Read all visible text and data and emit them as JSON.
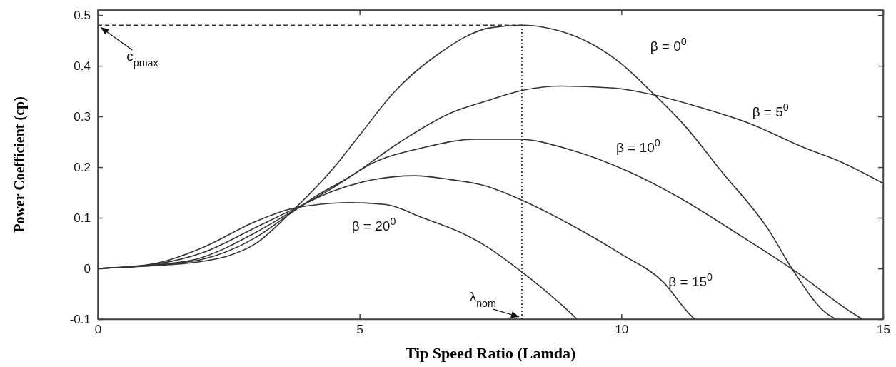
{
  "chart_data": {
    "type": "line",
    "xlabel": "Tip Speed Ratio (Lamda)",
    "ylabel": "Power Coefficient (cp)",
    "xlim": [
      0,
      15
    ],
    "ylim": [
      -0.1,
      0.51
    ],
    "xticks": [
      0,
      5,
      10,
      15
    ],
    "yticks": [
      -0.1,
      0,
      0.1,
      0.2,
      0.3,
      0.4,
      0.5
    ],
    "grid": false,
    "marker": "none",
    "line_style": "solid",
    "series": [
      {
        "name": "β = 0$^{0}$",
        "color": "#333333",
        "x": [
          0,
          1,
          2,
          2.5,
          3,
          3.7,
          4.5,
          5,
          5.65,
          6.5,
          7.5,
          8.1,
          8.7,
          9.3,
          9.95,
          10.6,
          11.2,
          11.9,
          12.8,
          13.3,
          13.9,
          14.1
        ],
        "values": [
          0,
          0.005,
          0.014,
          0.025,
          0.048,
          0.112,
          0.198,
          0.263,
          0.347,
          0.423,
          0.475,
          0.48,
          0.472,
          0.45,
          0.408,
          0.346,
          0.283,
          0.193,
          0.078,
          -0.007,
          -0.087,
          -0.1
        ]
      },
      {
        "name": "β = 5$^{0}$",
        "color": "#333333",
        "x": [
          0,
          1,
          2,
          3,
          3.7,
          4.2,
          4.8,
          5.75,
          6.7,
          7.5,
          8.05,
          8.85,
          9.85,
          10.6,
          11.5,
          12.4,
          13.5,
          14.2,
          15
        ],
        "values": [
          0,
          0.006,
          0.018,
          0.06,
          0.11,
          0.145,
          0.18,
          0.248,
          0.305,
          0.333,
          0.35,
          0.36,
          0.356,
          0.343,
          0.318,
          0.288,
          0.238,
          0.21,
          0.168
        ]
      },
      {
        "name": "β = 10$^{0}$",
        "color": "#333333",
        "x": [
          0,
          1,
          2,
          3,
          3.7,
          4.5,
          5.25,
          6.2,
          7.2,
          8.05,
          9,
          10.1,
          11.05,
          12.3,
          13.3,
          14.4,
          14.6
        ],
        "values": [
          0,
          0.006,
          0.022,
          0.07,
          0.112,
          0.16,
          0.208,
          0.238,
          0.255,
          0.255,
          0.235,
          0.193,
          0.143,
          0.063,
          -0.004,
          -0.087,
          -0.1
        ]
      },
      {
        "name": "β = 15$^{0}$",
        "color": "#333333",
        "x": [
          0,
          1,
          2,
          3,
          3.7,
          4.5,
          5.25,
          6.05,
          6.7,
          7.4,
          8.05,
          9,
          10,
          10.8,
          11.3,
          11.4
        ],
        "values": [
          0,
          0.007,
          0.031,
          0.08,
          0.115,
          0.153,
          0.175,
          0.183,
          0.176,
          0.163,
          0.137,
          0.088,
          0.028,
          -0.027,
          -0.09,
          -0.1
        ]
      },
      {
        "name": "β = 20$^{0}$",
        "color": "#333333",
        "x": [
          0,
          1,
          2,
          3,
          3.7,
          4.2,
          4.8,
          5.5,
          6.2,
          6.95,
          7.4,
          8.05,
          8.5,
          9.05,
          9.15
        ],
        "values": [
          0,
          0.008,
          0.041,
          0.092,
          0.118,
          0.126,
          0.13,
          0.126,
          0.1,
          0.07,
          0.045,
          -0.003,
          -0.04,
          -0.09,
          -0.1
        ]
      }
    ],
    "ref_lines": [
      {
        "axis": "y",
        "value": 0.48,
        "line_style": "dashed",
        "color": "#333333"
      },
      {
        "axis": "x",
        "value": 8.1,
        "line_style": "dotted",
        "color": "#111111"
      }
    ],
    "annotations": [
      {
        "text": "c$_{pmax}$",
        "x": 0,
        "y": 0.48
      },
      {
        "text": "λ$_{nom}$",
        "x": 8.1,
        "y": -0.1
      }
    ]
  }
}
